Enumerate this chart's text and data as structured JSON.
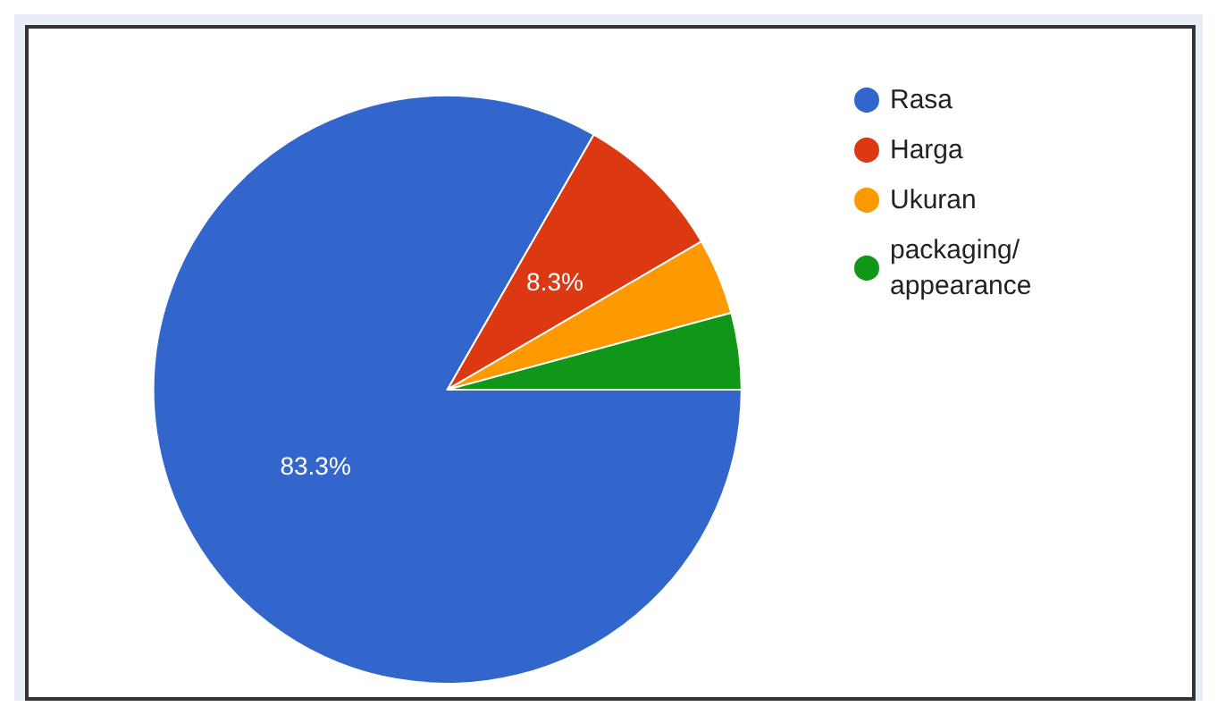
{
  "chart_data": {
    "type": "pie",
    "categories": [
      "Rasa",
      "Harga",
      "Ukuran",
      "packaging/ appearance"
    ],
    "values": [
      83.3,
      8.3,
      4.2,
      4.2
    ],
    "colors": [
      "#3366cc",
      "#dc3912",
      "#ff9900",
      "#109618"
    ],
    "value_labels": [
      "83.3%",
      "8.3%",
      null,
      null
    ],
    "legend": "top right"
  }
}
